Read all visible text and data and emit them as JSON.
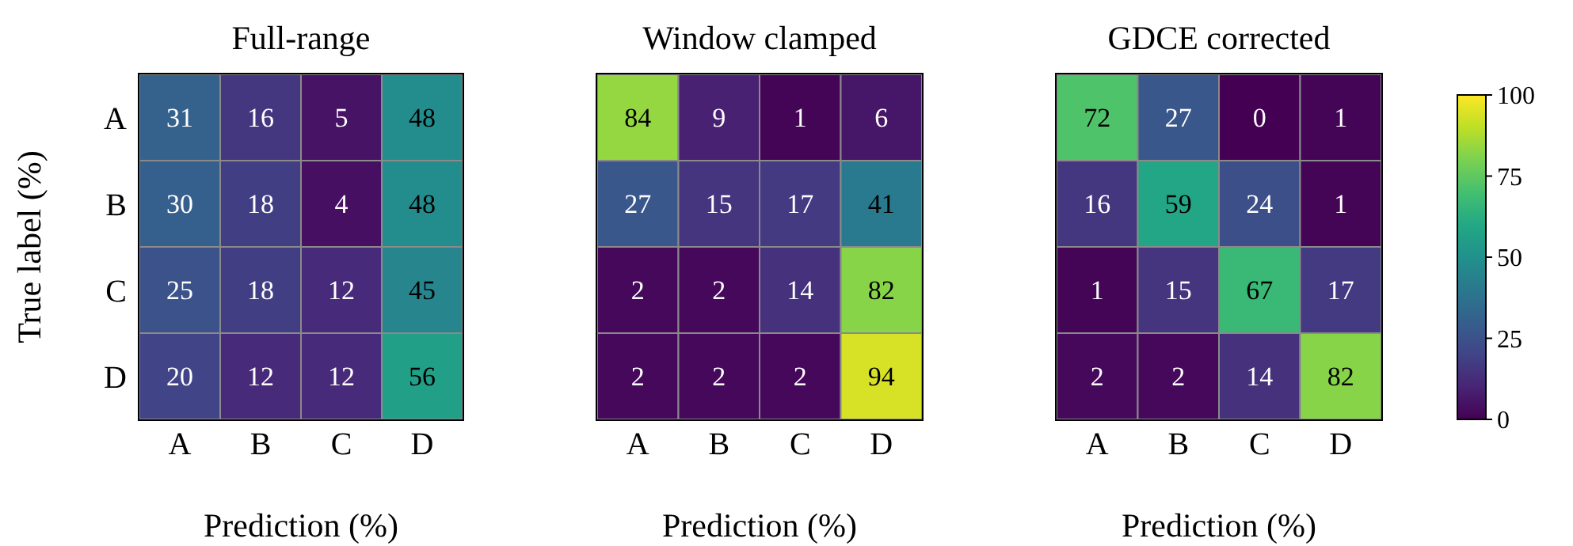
{
  "chart_data": [
    {
      "type": "heatmap",
      "title": "Full-range",
      "xlabel": "Prediction (%)",
      "ylabel": "True label (%)",
      "categories": [
        "A",
        "B",
        "C",
        "D"
      ],
      "y_categories": [
        "A",
        "B",
        "C",
        "D"
      ],
      "cells": [
        [
          31,
          16,
          5,
          48
        ],
        [
          30,
          18,
          4,
          48
        ],
        [
          25,
          18,
          12,
          45
        ],
        [
          20,
          12,
          12,
          56
        ]
      ],
      "data_labels": true
    },
    {
      "type": "heatmap",
      "title": "Window clamped",
      "xlabel": "Prediction (%)",
      "categories": [
        "A",
        "B",
        "C",
        "D"
      ],
      "y_categories": [
        null,
        null,
        null,
        null
      ],
      "cells": [
        [
          84,
          9,
          1,
          6
        ],
        [
          27,
          15,
          17,
          41
        ],
        [
          2,
          2,
          14,
          82
        ],
        [
          2,
          2,
          2,
          94
        ]
      ],
      "data_labels": true
    },
    {
      "type": "heatmap",
      "title": "GDCE corrected",
      "xlabel": "Prediction (%)",
      "categories": [
        "A",
        "B",
        "C",
        "D"
      ],
      "y_categories": [
        null,
        null,
        null,
        null
      ],
      "cells": [
        [
          72,
          27,
          0,
          1
        ],
        [
          16,
          59,
          24,
          1
        ],
        [
          1,
          15,
          67,
          17
        ],
        [
          2,
          2,
          14,
          82
        ]
      ],
      "clim": [
        0,
        100
      ],
      "cticks": [
        0,
        25,
        50,
        75,
        100
      ],
      "data_labels": true
    }
  ]
}
